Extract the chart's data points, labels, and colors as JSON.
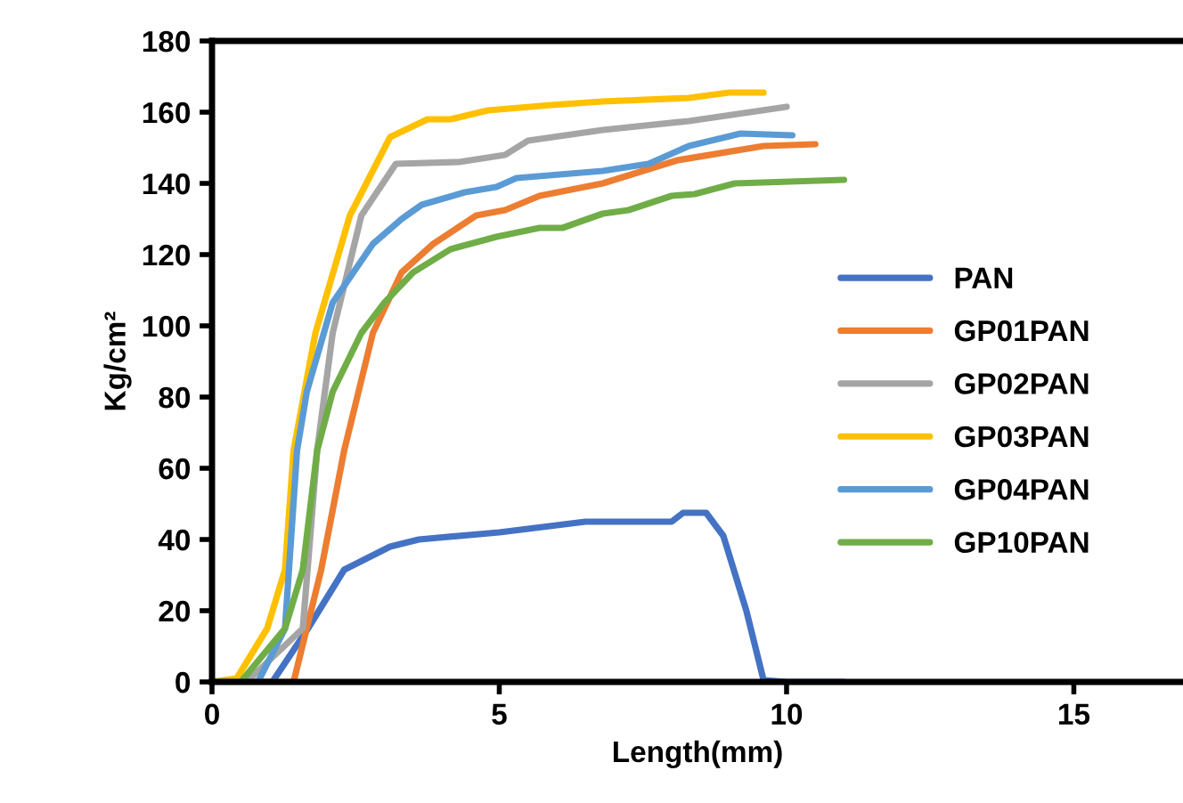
{
  "chart_data": {
    "type": "line",
    "xlabel": "Length(mm)",
    "ylabel": "Kg/cm²",
    "xlim": [
      0,
      16.9
    ],
    "xticks": [
      0,
      5,
      10,
      15
    ],
    "ylim": [
      0,
      180
    ],
    "yticks": [
      0,
      20,
      40,
      60,
      80,
      100,
      120,
      140,
      160,
      180
    ],
    "grid": false,
    "legend": "right",
    "marker": "none",
    "line_style": "solid",
    "series": [
      {
        "name": "PAN",
        "color": "#4472c4",
        "x": [
          0,
          1.05,
          1.67,
          2.3,
          3.1,
          3.6,
          5.0,
          6.5,
          8.0,
          8.2,
          8.6,
          8.9,
          9.3,
          9.6,
          10.0,
          10.5,
          11.0
        ],
        "values": [
          0,
          0,
          15,
          31.5,
          38,
          40,
          42,
          45,
          45,
          47.5,
          47.5,
          41,
          20,
          0.5,
          0,
          0,
          0
        ]
      },
      {
        "name": "GP01PAN",
        "color": "#ed7d31",
        "x": [
          0,
          1.42,
          1.9,
          2.3,
          2.8,
          3.3,
          3.85,
          4.6,
          5.1,
          5.7,
          6.8,
          8.1,
          9.6,
          10.5
        ],
        "values": [
          0,
          0,
          31.5,
          65,
          98,
          115,
          123,
          131,
          132.5,
          136.5,
          140,
          146.5,
          150.5,
          151
        ]
      },
      {
        "name": "GP02PAN",
        "color": "#a5a5a5",
        "x": [
          0,
          0.6,
          1.58,
          1.83,
          2.1,
          2.6,
          3.2,
          4.3,
          5.1,
          5.5,
          6.8,
          8.3,
          10.0
        ],
        "values": [
          0,
          0,
          15,
          65,
          98,
          131,
          145.5,
          146,
          148,
          152,
          155,
          157.5,
          161.5
        ]
      },
      {
        "name": "GP03PAN",
        "color": "#ffc000",
        "x": [
          0,
          0.43,
          0.96,
          1.27,
          1.42,
          1.8,
          2.4,
          3.1,
          3.75,
          4.15,
          4.8,
          5.9,
          6.8,
          8.3,
          9.0,
          9.6
        ],
        "values": [
          0,
          1,
          15,
          31.5,
          65,
          98,
          131,
          153,
          158,
          158,
          160.5,
          162,
          163,
          164,
          165.5,
          165.5
        ]
      },
      {
        "name": "GP04PAN",
        "color": "#5b9bd5",
        "x": [
          0,
          0.8,
          1.27,
          1.48,
          1.65,
          2.1,
          2.8,
          3.3,
          3.65,
          4.4,
          4.95,
          5.3,
          6.8,
          7.6,
          8.3,
          9.2,
          10.1
        ],
        "values": [
          0,
          0,
          15,
          65,
          81.5,
          106.5,
          123,
          130,
          134,
          137.5,
          139,
          141.5,
          143.5,
          145.5,
          150.5,
          154,
          153.5
        ]
      },
      {
        "name": "GP10PAN",
        "color": "#70ad47",
        "x": [
          0,
          0.5,
          1.27,
          1.58,
          1.83,
          2.1,
          2.6,
          3.0,
          3.5,
          4.15,
          4.95,
          5.7,
          6.1,
          6.8,
          7.25,
          8.0,
          8.4,
          9.1,
          11.0
        ],
        "values": [
          0,
          0,
          15,
          31.5,
          65,
          81.5,
          98,
          106.5,
          115,
          121.5,
          125,
          127.5,
          127.5,
          131.5,
          132.5,
          136.5,
          137,
          140,
          141
        ]
      }
    ]
  }
}
